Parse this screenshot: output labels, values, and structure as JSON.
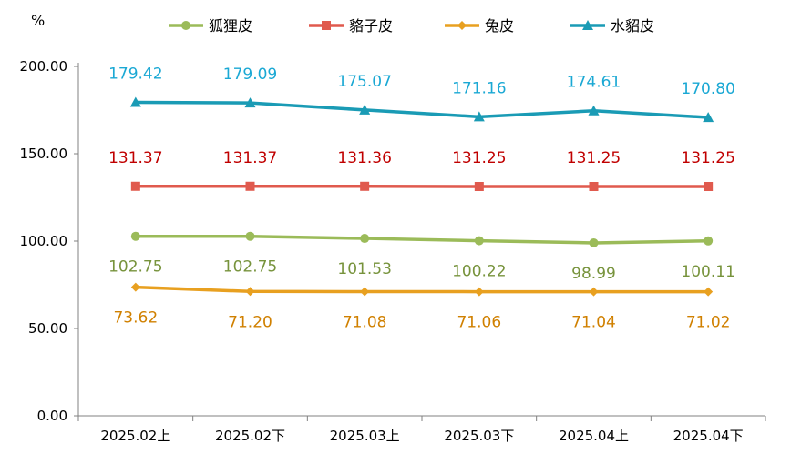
{
  "chart_data": {
    "type": "line",
    "ylabel": "%",
    "ylim": [
      0,
      200
    ],
    "yticks": [
      "0.00",
      "50.00",
      "100.00",
      "150.00",
      "200.00"
    ],
    "categories": [
      "2025.02上",
      "2025.02下",
      "2025.03上",
      "2025.03下",
      "2025.04上",
      "2025.04下"
    ],
    "legend_position": "top-center",
    "grid": false,
    "series": [
      {
        "name": "狐狸皮",
        "color": "#9bbb59",
        "label_color": "#77933c",
        "marker": "circle",
        "label_position": "below",
        "values": [
          102.75,
          102.75,
          101.53,
          100.22,
          98.99,
          100.11
        ],
        "labels": [
          "102.75",
          "102.75",
          "101.53",
          "100.22",
          "98.99",
          "100.11"
        ]
      },
      {
        "name": "貉子皮",
        "color": "#e05a4e",
        "label_color": "#c00000",
        "marker": "square",
        "label_position": "above",
        "values": [
          131.37,
          131.37,
          131.36,
          131.25,
          131.25,
          131.25
        ],
        "labels": [
          "131.37",
          "131.37",
          "131.36",
          "131.25",
          "131.25",
          "131.25"
        ]
      },
      {
        "name": "兔皮",
        "color": "#e8a020",
        "label_color": "#d08000",
        "marker": "diamond",
        "label_position": "below",
        "values": [
          73.62,
          71.2,
          71.08,
          71.06,
          71.04,
          71.02
        ],
        "labels": [
          "73.62",
          "71.20",
          "71.08",
          "71.06",
          "71.04",
          "71.02"
        ]
      },
      {
        "name": "水貂皮",
        "color": "#1a9bb5",
        "label_color": "#1aa8d4",
        "marker": "triangle",
        "label_position": "above",
        "values": [
          179.42,
          179.09,
          175.07,
          171.16,
          174.61,
          170.8
        ],
        "labels": [
          "179.42",
          "179.09",
          "175.07",
          "171.16",
          "174.61",
          "170.80"
        ]
      }
    ]
  }
}
